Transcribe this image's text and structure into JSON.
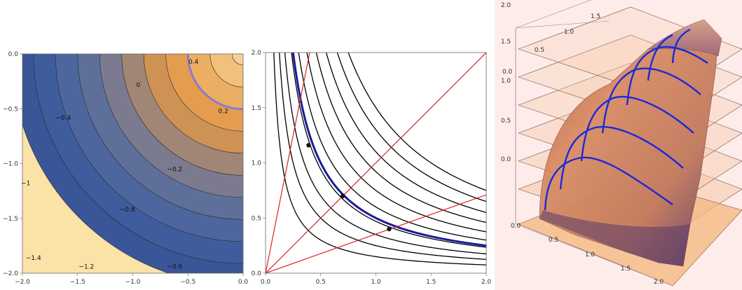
{
  "chart_data": [
    {
      "type": "contour",
      "xlim": [
        -2,
        0
      ],
      "ylim": [
        -2,
        0
      ],
      "x_ticks": [
        "-2.0",
        "-1.5",
        "-1.0",
        "-0.5",
        "0.0"
      ],
      "y_ticks": [
        "0.0",
        "-0.5",
        "-1.0",
        "-1.5",
        "-2.0"
      ],
      "contour_levels": [
        -1.4,
        -1.2,
        -1,
        -0.8,
        -0.6,
        -0.4,
        -0.2,
        0,
        0.2,
        0.4
      ],
      "contour_labels": [
        {
          "text": "0.4",
          "x": -0.45,
          "y": -0.07
        },
        {
          "text": "0",
          "x": -0.95,
          "y": -0.28
        },
        {
          "text": "0.2",
          "x": -0.18,
          "y": -0.52
        },
        {
          "text": "−0.4",
          "x": -1.63,
          "y": -0.58
        },
        {
          "text": "−0.2",
          "x": -0.62,
          "y": -1.05
        },
        {
          "text": "−1",
          "x": -1.97,
          "y": -1.18
        },
        {
          "text": "−0.8",
          "x": -1.05,
          "y": -1.42
        },
        {
          "text": "−1.4",
          "x": -1.9,
          "y": -1.86
        },
        {
          "text": "−1.2",
          "x": -1.42,
          "y": -1.94
        },
        {
          "text": "−0.6",
          "x": -0.62,
          "y": -1.94
        }
      ],
      "highlight_level": 0,
      "highlight_color": "#8a7cc8"
    },
    {
      "type": "line",
      "xlim": [
        0,
        2
      ],
      "ylim": [
        0,
        2
      ],
      "x_ticks": [
        "0.0",
        "0.5",
        "1.0",
        "1.5",
        "2.0"
      ],
      "y_ticks": [
        "0.0",
        "0.5",
        "1.0",
        "1.5",
        "2.0"
      ],
      "series": [
        {
          "k": 0.15,
          "color": "#000000"
        },
        {
          "k": 0.25,
          "color": "#000000"
        },
        {
          "k": 0.35,
          "color": "#000000"
        },
        {
          "k": 0.47,
          "color": "#000000"
        },
        {
          "k": 0.6,
          "color": "#000000"
        },
        {
          "k": 0.75,
          "color": "#000000"
        },
        {
          "k": 0.92,
          "color": "#000000"
        },
        {
          "k": 1.1,
          "color": "#000000"
        },
        {
          "k": 1.3,
          "color": "#000000"
        },
        {
          "k": 1.5,
          "color": "#000000"
        }
      ],
      "highlight_series": {
        "k": 0.5,
        "color": "#1a1a9c"
      },
      "rays": [
        {
          "slope": 5.0,
          "color": "#e02020"
        },
        {
          "slope": 1.0,
          "color": "#e02020"
        },
        {
          "slope": 0.355,
          "color": "#e02020"
        }
      ],
      "points": [
        {
          "x": 0.39,
          "y": 1.16
        },
        {
          "x": 0.7,
          "y": 0.7
        },
        {
          "x": 1.12,
          "y": 0.4
        }
      ]
    },
    {
      "type": "surface3d",
      "x_ticks": [
        "0.0",
        "0.5",
        "1.0",
        "1.5",
        "2.0"
      ],
      "y_ticks": [
        "0.0",
        "0.5",
        "1.0",
        "1.5",
        "2.0"
      ],
      "z_ticks": [
        "0.0",
        "0.5",
        "1.0",
        "1.5"
      ],
      "surface_color": "#c87a5a",
      "level_curve_color": "#1a2ad8",
      "plane_color": "#f7c9a8",
      "background_color": "#fdecea"
    }
  ]
}
